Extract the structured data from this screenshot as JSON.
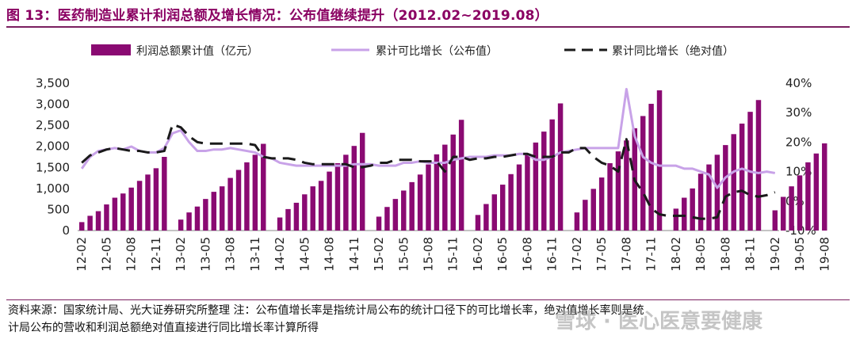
{
  "title": "图 13：医药制造业累计利润总额及增长情况：公布值继续提升（2012.02~2019.08）",
  "footnote_line1": "资料来源：国家统计局、光大证券研究所整理 注：公布值增长率是指统计局公布的统计口径下的可比增长率，绝对值增长率则是统",
  "footnote_line2": "计局公布的营收和利润总额绝对值直接进行同比增长率计算所得",
  "watermark": "雪球 · 医心医意要健康",
  "chart_data": {
    "type": "bar",
    "left_axis": {
      "min": 0,
      "max": 3500,
      "step": 500,
      "ticks": [
        "0",
        "500",
        "1,000",
        "1,500",
        "2,000",
        "2,500",
        "3,000",
        "3,500"
      ]
    },
    "right_axis": {
      "min": -0.1,
      "max": 0.4,
      "step": 0.1,
      "ticks": [
        "-10%",
        "0%",
        "10%",
        "20%",
        "30%",
        "40%"
      ]
    },
    "x_tick_labels": [
      "12-02",
      "12-05",
      "12-08",
      "12-11",
      "13-02",
      "13-05",
      "13-08",
      "13-11",
      "14-02",
      "14-05",
      "14-08",
      "14-11",
      "15-02",
      "15-05",
      "15-08",
      "15-11",
      "16-02",
      "16-05",
      "16-08",
      "16-11",
      "17-02",
      "17-05",
      "17-08",
      "17-11",
      "18-02",
      "18-05",
      "18-08",
      "18-11",
      "19-02",
      "19-05",
      "19-08"
    ],
    "legend": [
      "利润总额累计值（亿元）",
      "累计可比增长（公布值）",
      "累计同比增长（绝对值）"
    ],
    "colors": {
      "bars": "#8a0a72",
      "published": "#c8a2e8",
      "absolute": "#1a1a1a"
    },
    "years": [
      {
        "start": "2012-02",
        "values": [
          200,
          350,
          460,
          620,
          780,
          880,
          1020,
          1180,
          1330,
          1480,
          1750
        ]
      },
      {
        "start": "2013-02",
        "values": [
          260,
          430,
          570,
          750,
          920,
          1050,
          1250,
          1440,
          1620,
          1800,
          2060
        ]
      },
      {
        "start": "2014-02",
        "values": [
          310,
          510,
          660,
          860,
          1050,
          1180,
          1400,
          1600,
          1800,
          2010,
          2320
        ]
      },
      {
        "start": "2015-02",
        "values": [
          330,
          560,
          750,
          950,
          1150,
          1330,
          1570,
          1810,
          2040,
          2280,
          2630
        ]
      },
      {
        "start": "2016-02",
        "values": [
          370,
          630,
          860,
          1090,
          1340,
          1570,
          1810,
          2090,
          2350,
          2640,
          3020
        ]
      },
      {
        "start": "2017-02",
        "values": [
          430,
          730,
          990,
          1260,
          1600,
          1880,
          2140,
          2430,
          2720,
          3010,
          3330
        ]
      },
      {
        "start": "2018-02",
        "values": [
          520,
          780,
          1000,
          1350,
          1570,
          1800,
          2030,
          2290,
          2540,
          2820,
          3100
        ]
      },
      {
        "start": "2019-02",
        "values": [
          480,
          800,
          1050,
          1310,
          1620,
          1830,
          2070
        ]
      }
    ],
    "published_growth": [
      0.11,
      0.15,
      0.17,
      0.175,
      0.18,
      0.175,
      0.185,
      0.17,
      0.165,
      0.165,
      0.18,
      0.23,
      0.24,
      0.2,
      0.17,
      0.17,
      0.175,
      0.175,
      0.18,
      0.175,
      0.17,
      0.165,
      0.15,
      0.145,
      0.13,
      0.125,
      0.12,
      0.12,
      0.12,
      0.12,
      0.12,
      0.12,
      0.12,
      0.125,
      0.125,
      0.125,
      0.12,
      0.12,
      0.12,
      0.13,
      0.13,
      0.135,
      0.13,
      0.13,
      0.13,
      0.14,
      0.145,
      0.15,
      0.15,
      0.15,
      0.155,
      0.155,
      0.155,
      0.16,
      0.16,
      0.14,
      0.14,
      0.15,
      0.165,
      0.17,
      0.175,
      0.18,
      0.18,
      0.18,
      0.18,
      0.18,
      0.38,
      0.22,
      0.15,
      0.13,
      0.12,
      0.12,
      0.12,
      0.11,
      0.11,
      0.1,
      0.09,
      0.045,
      0.08,
      0.1,
      0.11,
      0.1,
      0.095,
      0.1,
      0.095
    ],
    "absolute_growth": [
      0.13,
      0.155,
      0.165,
      0.175,
      0.18,
      0.175,
      0.17,
      0.17,
      0.165,
      0.165,
      0.17,
      0.26,
      0.25,
      0.22,
      0.2,
      0.195,
      0.195,
      0.195,
      0.195,
      0.195,
      0.195,
      0.19,
      0.15,
      0.145,
      0.145,
      0.145,
      0.14,
      0.13,
      0.125,
      0.125,
      0.125,
      0.125,
      0.125,
      0.115,
      0.115,
      0.12,
      0.13,
      0.13,
      0.14,
      0.14,
      0.14,
      0.135,
      0.135,
      0.135,
      0.1,
      0.15,
      0.15,
      0.14,
      0.145,
      0.145,
      0.15,
      0.15,
      0.155,
      0.16,
      0.16,
      0.15,
      0.15,
      0.15,
      0.165,
      0.165,
      0.18,
      0.18,
      0.15,
      0.13,
      0.12,
      0.1,
      0.21,
      0.07,
      0.03,
      -0.025,
      -0.045,
      -0.05,
      -0.05,
      -0.05,
      -0.055,
      -0.06,
      -0.06,
      -0.055,
      0.015,
      0.03,
      0.035,
      0.02,
      0.015,
      0.02,
      0.03
    ]
  }
}
